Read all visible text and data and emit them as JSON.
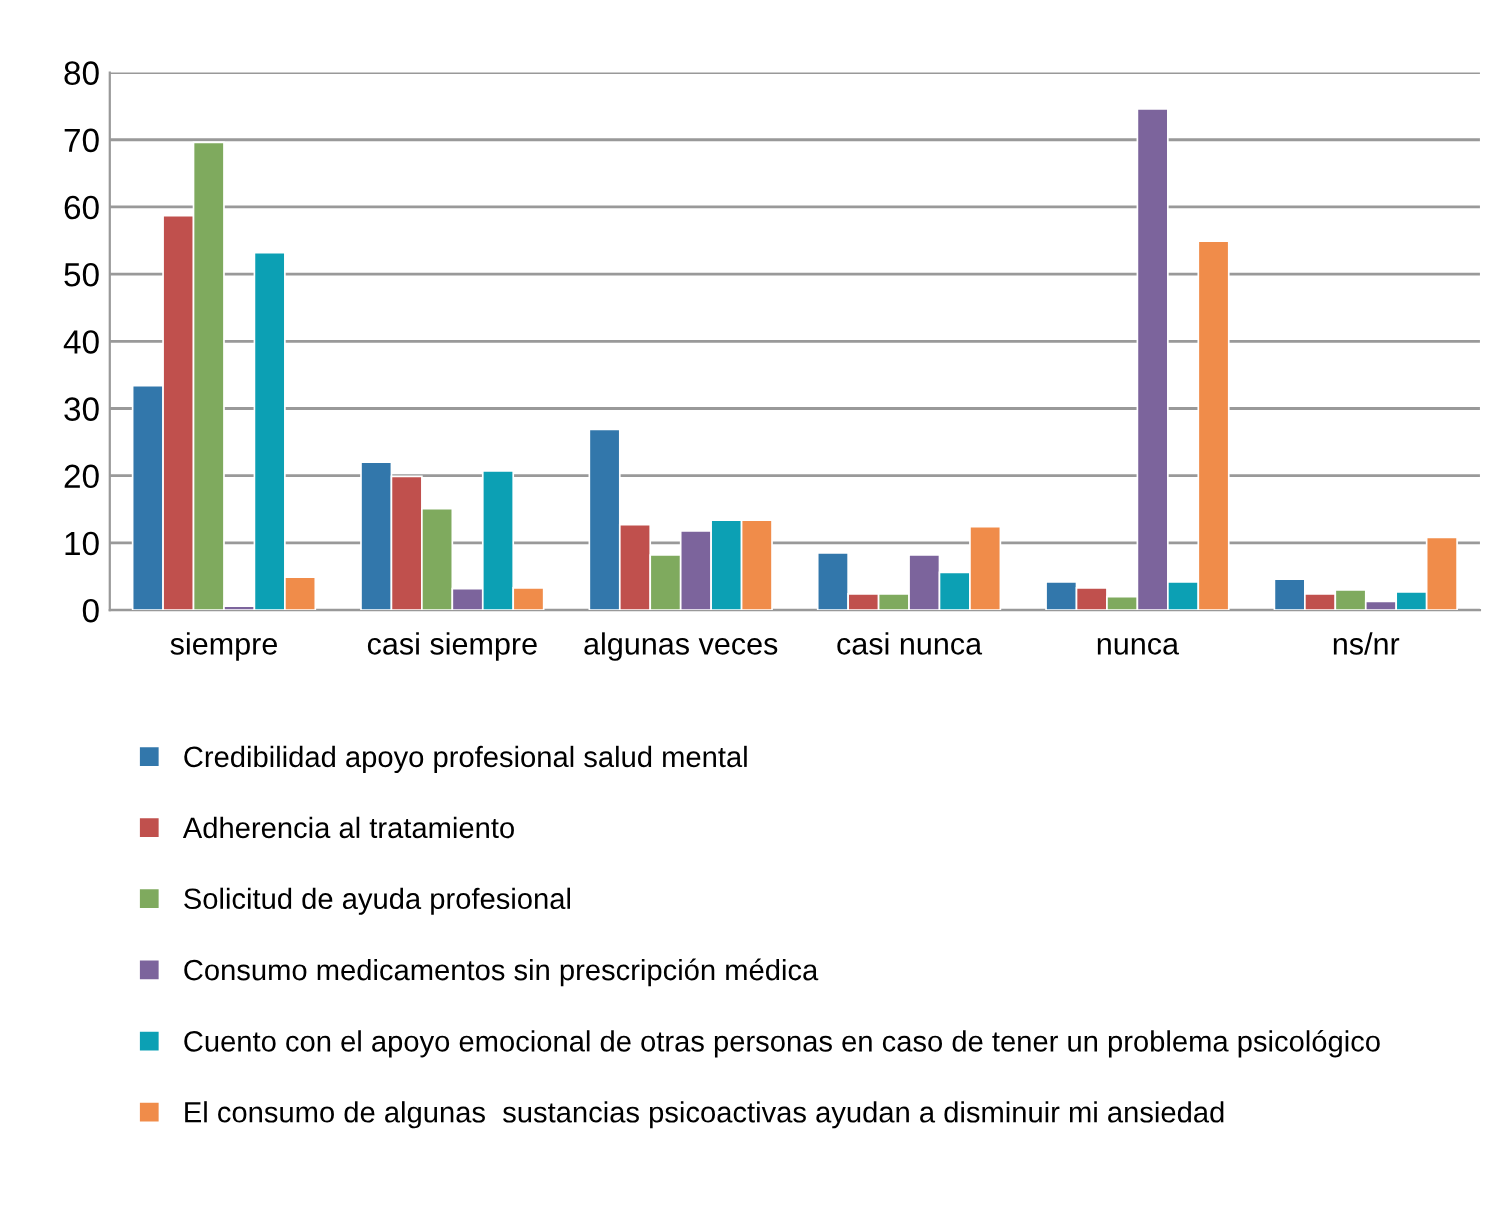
{
  "chart_data": {
    "type": "bar",
    "categories": [
      "siempre",
      "casi siempre",
      "algunas veces",
      "casi nunca",
      "nunca",
      "ns/nr"
    ],
    "series": [
      {
        "name": "Credibilidad apoyo profesional salud mental",
        "color": "#3277ab",
        "values": [
          33.4,
          22.0,
          26.9,
          8.5,
          4.2,
          4.6
        ]
      },
      {
        "name": "Adherencia al tratamiento",
        "color": "#c0504d",
        "values": [
          58.7,
          19.9,
          12.7,
          2.4,
          3.3,
          2.4
        ]
      },
      {
        "name": "Solicitud de ayuda profesional",
        "color": "#7faa5e",
        "values": [
          69.6,
          15.1,
          8.2,
          2.4,
          2.0,
          3.0
        ]
      },
      {
        "name": "Consumo medicamentos sin prescripción médica",
        "color": "#7c649c",
        "values": [
          0.6,
          3.2,
          11.8,
          8.2,
          74.6,
          1.3
        ]
      },
      {
        "name": "Cuento con el apoyo emocional de otras personas en caso de tener un problema psicológico",
        "color": "#0ca0b4",
        "values": [
          53.2,
          20.7,
          13.4,
          5.6,
          4.2,
          2.7
        ]
      },
      {
        "name": "El consumo de algunas  sustancias psicoactivas ayudan a disminuir mi ansiedad",
        "color": "#f08c4a",
        "values": [
          4.9,
          3.3,
          13.4,
          12.4,
          54.9,
          10.8
        ]
      }
    ],
    "ylim": [
      0,
      80
    ],
    "yticks": [
      0,
      10,
      20,
      30,
      40,
      50,
      60,
      70,
      80
    ],
    "grid": "y",
    "legend": "bottom"
  }
}
